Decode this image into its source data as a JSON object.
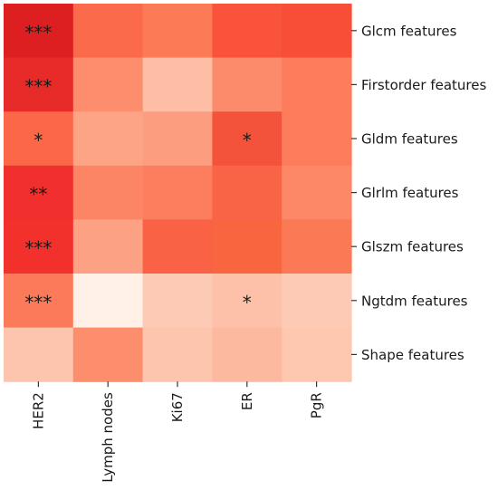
{
  "chart_data": {
    "type": "heatmap",
    "columns": [
      "HER2",
      "Lymph nodes",
      "Ki67",
      "ER",
      "PgR"
    ],
    "rows": [
      "Glcm features",
      "Firstorder features",
      "Gldm features",
      "Glrlm features",
      "Glszm features",
      "Ngtdm features",
      "Shape features"
    ],
    "colors": [
      [
        "#dd1f22",
        "#fb6b4b",
        "#fc7b56",
        "#f9533b",
        "#f84d36"
      ],
      [
        "#e62b28",
        "#fc8d6d",
        "#fdbea5",
        "#fc8b6b",
        "#fc7c5c"
      ],
      [
        "#fb6848",
        "#fda486",
        "#fc9d80",
        "#f4533b",
        "#fc7c5c"
      ],
      [
        "#f02f2e",
        "#fc8565",
        "#fc7e5f",
        "#f96446",
        "#fc8868"
      ],
      [
        "#f2302c",
        "#fca184",
        "#f96244",
        "#f8663f",
        "#fb7a55"
      ],
      [
        "#fb7a59",
        "#fff0e8",
        "#fdcbb5",
        "#fcc1a8",
        "#fdcbb5"
      ],
      [
        "#fdc5ae",
        "#fc8d6d",
        "#fdc5ae",
        "#fdb99f",
        "#fdc7b0"
      ]
    ],
    "annotations": [
      [
        "***",
        "",
        "",
        "",
        ""
      ],
      [
        "***",
        "",
        "",
        "",
        ""
      ],
      [
        "*",
        "",
        "",
        "*",
        ""
      ],
      [
        "**",
        "",
        "",
        "",
        ""
      ],
      [
        "***",
        "",
        "",
        "",
        ""
      ],
      [
        "***",
        "",
        "",
        "*",
        ""
      ],
      [
        "",
        "",
        "",
        "",
        ""
      ]
    ]
  }
}
